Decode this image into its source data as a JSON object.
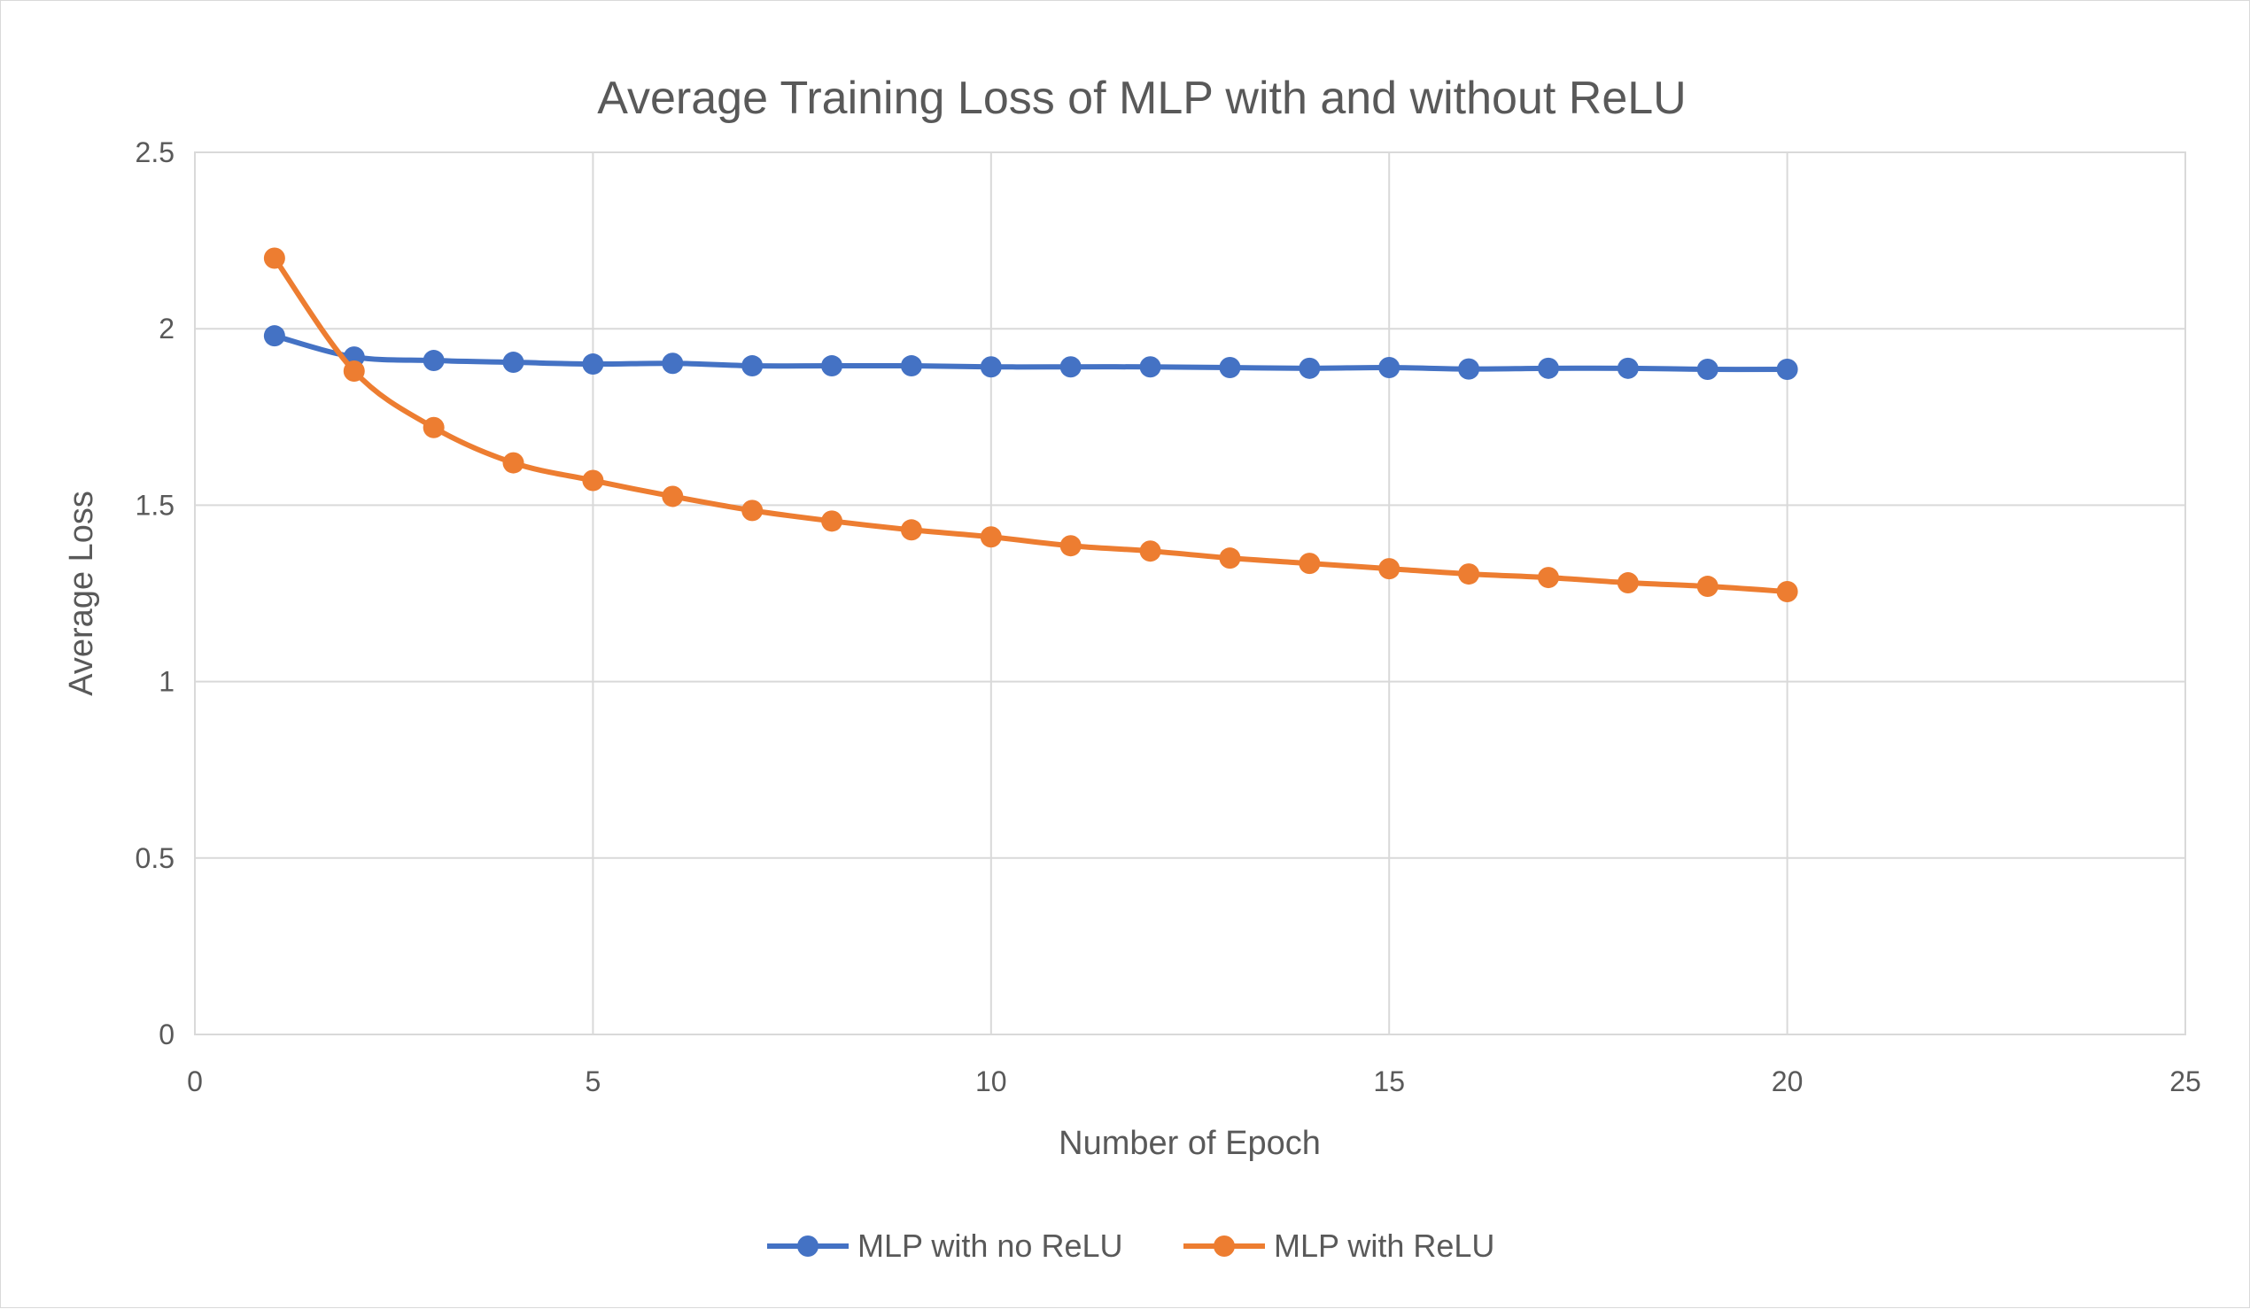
{
  "chart_data": {
    "type": "line",
    "title": "Average Training Loss of MLP with and without ReLU",
    "xlabel": "Number of Epoch",
    "ylabel": "Average Loss",
    "xlim": [
      0,
      25
    ],
    "ylim": [
      0,
      2.5
    ],
    "x_ticks": [
      "0",
      "5",
      "10",
      "15",
      "20",
      "25"
    ],
    "y_ticks": [
      "0",
      "0.5",
      "1",
      "1.5",
      "2",
      "2.5"
    ],
    "grid": true,
    "legend_position": "bottom",
    "x": [
      1,
      2,
      3,
      4,
      5,
      6,
      7,
      8,
      9,
      10,
      11,
      12,
      13,
      14,
      15,
      16,
      17,
      18,
      19,
      20
    ],
    "series": [
      {
        "name": "MLP with no ReLU",
        "color": "#4472c4",
        "values": [
          1.98,
          1.92,
          1.91,
          1.905,
          1.9,
          1.902,
          1.895,
          1.895,
          1.895,
          1.892,
          1.892,
          1.892,
          1.89,
          1.888,
          1.89,
          1.886,
          1.888,
          1.888,
          1.885,
          1.885
        ]
      },
      {
        "name": "MLP with ReLU",
        "color": "#ed7d31",
        "values": [
          2.2,
          1.88,
          1.72,
          1.62,
          1.57,
          1.525,
          1.485,
          1.455,
          1.43,
          1.41,
          1.385,
          1.37,
          1.35,
          1.335,
          1.32,
          1.305,
          1.295,
          1.28,
          1.27,
          1.255
        ]
      }
    ]
  }
}
